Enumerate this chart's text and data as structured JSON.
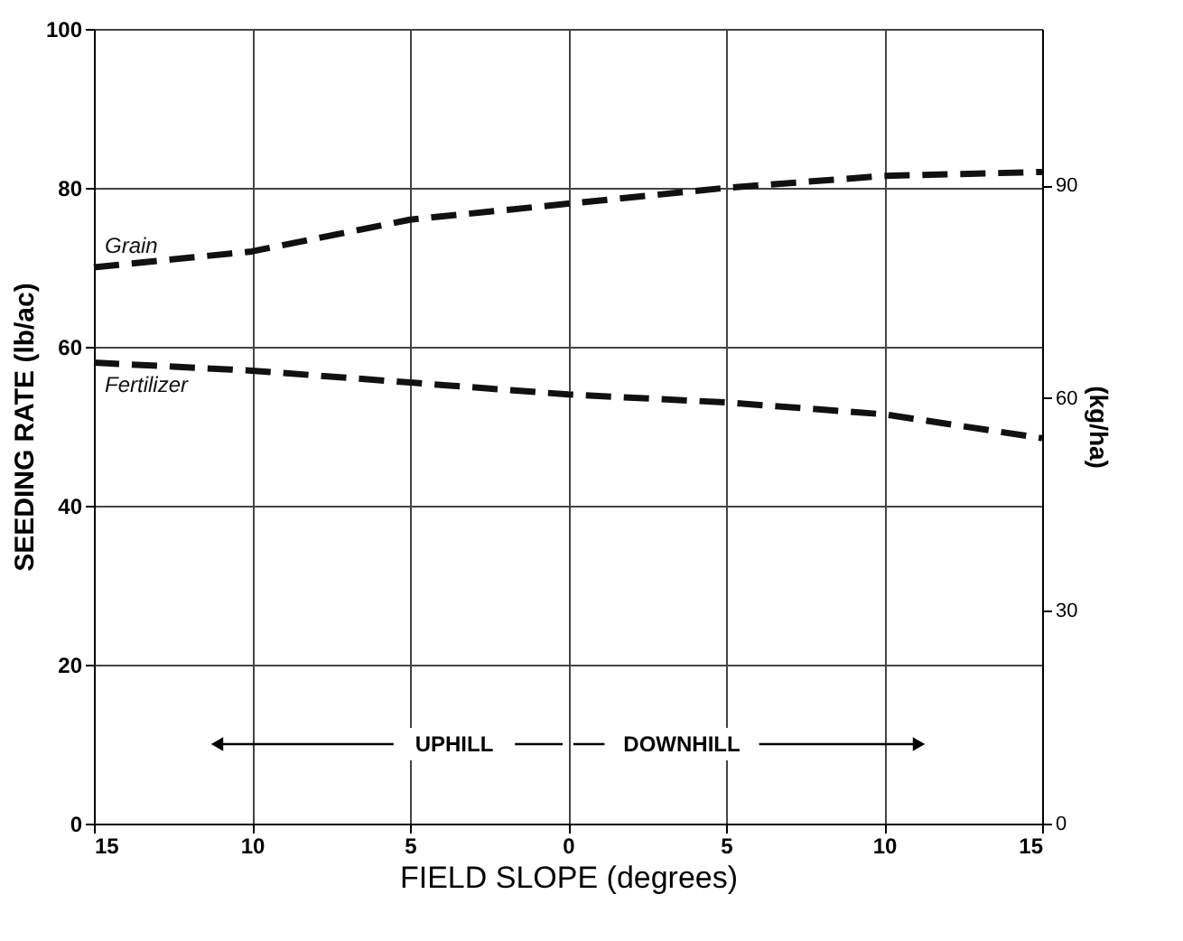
{
  "chart_data": {
    "type": "line",
    "xlabel": "FIELD SLOPE (degrees)",
    "ylabel": "SEEDING RATE (lb/ac)",
    "y2label": "(kg/ha)",
    "x": [
      -15,
      -10,
      -5,
      0,
      5,
      10,
      15
    ],
    "series": [
      {
        "name": "Grain",
        "color": "#111111",
        "values": [
          70,
          72,
          76,
          78,
          80,
          81.5,
          82
        ]
      },
      {
        "name": "Fertilizer",
        "color": "#111111",
        "values": [
          58,
          57,
          55.5,
          54,
          53,
          51.5,
          48.5
        ]
      }
    ],
    "xlim": [
      -15,
      15
    ],
    "xticks": [
      {
        "value": -15,
        "label": "15"
      },
      {
        "value": -10,
        "label": "10"
      },
      {
        "value": -5,
        "label": "5"
      },
      0,
      5,
      10,
      15
    ],
    "ylim": [
      0,
      100
    ],
    "yticks": [
      0,
      20,
      40,
      60,
      80,
      100
    ],
    "y2lim": [
      0,
      112.1
    ],
    "y2ticks": [
      0,
      30,
      60,
      90
    ],
    "annotations": [
      "UPHILL",
      "DOWNHILL"
    ],
    "grid": true,
    "line_style": "dashed",
    "marker": "none"
  }
}
